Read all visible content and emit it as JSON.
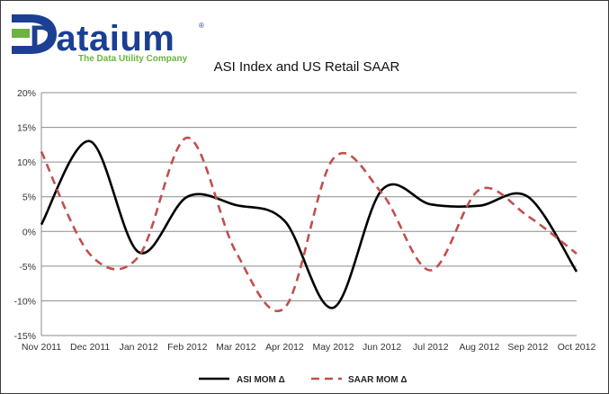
{
  "logo": {
    "name": "Dataium",
    "registered": "®",
    "tagline": "The Data Utility Company",
    "colors": {
      "primary": "#1c3f94",
      "accent": "#6cb33f"
    }
  },
  "chart_data": {
    "type": "line",
    "title": "ASI Index and US Retail SAAR",
    "xlabel": "",
    "ylabel": "",
    "categories": [
      "Nov 2011",
      "Dec 2011",
      "Jan 2012",
      "Feb 2012",
      "Mar 2012",
      "Apr 2012",
      "May 2012",
      "Jun 2012",
      "Jul 2012",
      "Aug 2012",
      "Sep 2012",
      "Oct 2012"
    ],
    "ylim": [
      -15,
      20
    ],
    "yticks": [
      -15,
      -10,
      -5,
      0,
      5,
      10,
      15,
      20
    ],
    "ytick_labels": [
      "-15%",
      "-10%",
      "-5%",
      "0%",
      "5%",
      "10%",
      "15%",
      "20%"
    ],
    "grid": true,
    "legend_position": "bottom",
    "series": [
      {
        "name": "ASI MOM Δ",
        "values": [
          1,
          13,
          -3,
          5,
          3.8,
          1.5,
          -11,
          6,
          3.9,
          3.7,
          5,
          -5.8
        ],
        "color": "#000000",
        "style": "solid"
      },
      {
        "name": "SAAR MOM Δ",
        "values": [
          11.5,
          -3.3,
          -3.6,
          13.5,
          -3,
          -11,
          10.5,
          5.5,
          -5.6,
          6,
          2.2,
          -3.2
        ],
        "color": "#c0504d",
        "style": "dashed"
      }
    ]
  }
}
